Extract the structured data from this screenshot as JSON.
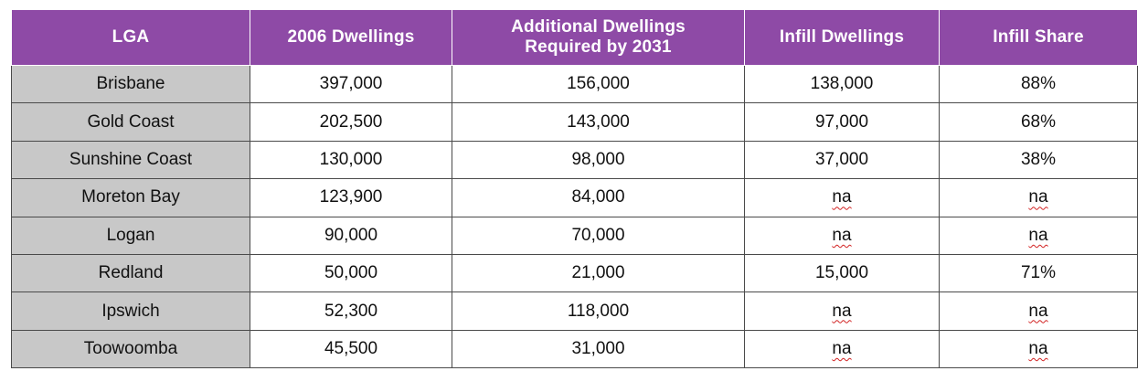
{
  "table": {
    "headers": [
      "LGA",
      "2006 Dwellings",
      "Additional Dwellings\nRequired by 2031",
      "Infill Dwellings",
      "Infill Share"
    ],
    "rows": [
      [
        "Brisbane",
        "397,000",
        "156,000",
        "138,000",
        "88%"
      ],
      [
        "Gold Coast",
        "202,500",
        "143,000",
        "97,000",
        "68%"
      ],
      [
        "Sunshine Coast",
        "130,000",
        "98,000",
        "37,000",
        "38%"
      ],
      [
        "Moreton Bay",
        "123,900",
        "84,000",
        "na",
        "na"
      ],
      [
        "Logan",
        "90,000",
        "70,000",
        "na",
        "na"
      ],
      [
        "Redland",
        "50,000",
        "21,000",
        "15,000",
        "71%"
      ],
      [
        "Ipswich",
        "52,300",
        "118,000",
        "na",
        "na"
      ],
      [
        "Toowoomba",
        "45,500",
        "31,000",
        "na",
        "na"
      ]
    ]
  },
  "colors": {
    "header_bg": "#8e4aa6",
    "header_text": "#ffffff",
    "lga_bg": "#c8c8c8",
    "spellcheck_underline": "#d22222"
  }
}
